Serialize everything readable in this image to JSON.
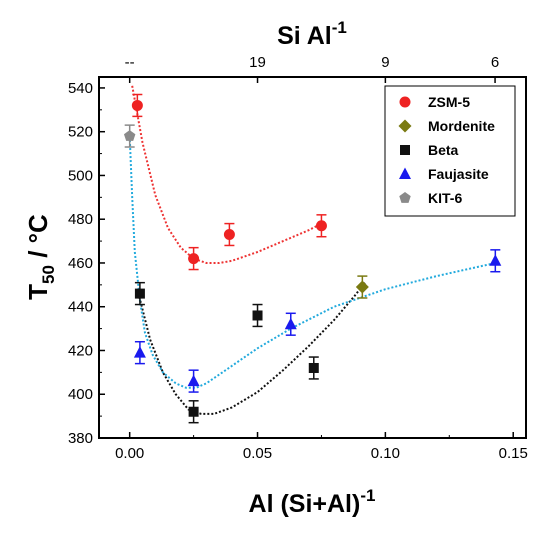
{
  "chart_data": {
    "type": "scatter",
    "title": "",
    "xlabel": "Al (Si+Al)",
    "xlabel_sup": "-1",
    "ylabel": "T",
    "ylabel_sub": "50",
    "ylabel_rest": " / °C",
    "top_axis_label": "Si Al",
    "top_axis_label_sup": "-1",
    "xlim": [
      -0.012,
      0.155
    ],
    "ylim": [
      380,
      545
    ],
    "x_ticks": [
      0.0,
      0.05,
      0.1,
      0.15
    ],
    "x_tick_labels": [
      "0.00",
      "0.05",
      "0.10",
      "0.15"
    ],
    "y_ticks": [
      380,
      400,
      420,
      440,
      460,
      480,
      500,
      520,
      540
    ],
    "y_tick_labels": [
      "380",
      "400",
      "420",
      "440",
      "460",
      "480",
      "500",
      "520",
      "540"
    ],
    "top_ticks": [
      {
        "x": 0.0,
        "label": "--"
      },
      {
        "x": 0.05,
        "label": "19"
      },
      {
        "x": 0.1,
        "label": "9"
      },
      {
        "x": 0.1429,
        "label": "6"
      }
    ],
    "legend_position": "top-right",
    "grid": false,
    "series": [
      {
        "name": "ZSM-5",
        "marker": "circle",
        "color": "#ee2222",
        "fit_color": "#ee3333",
        "points": [
          {
            "x": 0.003,
            "y": 532,
            "err": 5
          },
          {
            "x": 0.025,
            "y": 462,
            "err": 5
          },
          {
            "x": 0.039,
            "y": 473,
            "err": 5
          },
          {
            "x": 0.075,
            "y": 477,
            "err": 5
          }
        ],
        "fit": [
          [
            0.001,
            541
          ],
          [
            0.005,
            515
          ],
          [
            0.01,
            491
          ],
          [
            0.015,
            476
          ],
          [
            0.02,
            467
          ],
          [
            0.025,
            462
          ],
          [
            0.03,
            460
          ],
          [
            0.035,
            460
          ],
          [
            0.04,
            461
          ],
          [
            0.05,
            465
          ],
          [
            0.06,
            470
          ],
          [
            0.07,
            475
          ],
          [
            0.075,
            478
          ]
        ]
      },
      {
        "name": "Mordenite",
        "marker": "diamond",
        "color": "#7a7a12",
        "points": [
          {
            "x": 0.091,
            "y": 449,
            "err": 5
          }
        ]
      },
      {
        "name": "Beta",
        "marker": "square",
        "color": "#111111",
        "fit_color": "#111111",
        "points": [
          {
            "x": 0.004,
            "y": 446,
            "err": 5
          },
          {
            "x": 0.025,
            "y": 392,
            "err": 5
          },
          {
            "x": 0.05,
            "y": 436,
            "err": 5
          },
          {
            "x": 0.072,
            "y": 412,
            "err": 5
          }
        ],
        "fit": [
          [
            0.003,
            448
          ],
          [
            0.008,
            425
          ],
          [
            0.013,
            410
          ],
          [
            0.018,
            400
          ],
          [
            0.023,
            393
          ],
          [
            0.028,
            391
          ],
          [
            0.033,
            391
          ],
          [
            0.04,
            394
          ],
          [
            0.05,
            401
          ],
          [
            0.06,
            411
          ],
          [
            0.07,
            422
          ],
          [
            0.08,
            434
          ],
          [
            0.088,
            445
          ],
          [
            0.092,
            451
          ]
        ]
      },
      {
        "name": "Faujasite",
        "marker": "triangle",
        "color": "#1a1aee",
        "fit_color": "#22aadd",
        "points": [
          {
            "x": 0.004,
            "y": 419,
            "err": 5
          },
          {
            "x": 0.025,
            "y": 406,
            "err": 5
          },
          {
            "x": 0.063,
            "y": 432,
            "err": 5
          },
          {
            "x": 0.143,
            "y": 461,
            "err": 5
          }
        ],
        "fit": [
          [
            0.0,
            518
          ],
          [
            0.001,
            490
          ],
          [
            0.002,
            465
          ],
          [
            0.004,
            443
          ],
          [
            0.006,
            428
          ],
          [
            0.009,
            418
          ],
          [
            0.013,
            410
          ],
          [
            0.018,
            405
          ],
          [
            0.022,
            403
          ],
          [
            0.026,
            403
          ],
          [
            0.03,
            405
          ],
          [
            0.04,
            413
          ],
          [
            0.05,
            421
          ],
          [
            0.063,
            430
          ],
          [
            0.08,
            440
          ],
          [
            0.1,
            448
          ],
          [
            0.12,
            454
          ],
          [
            0.143,
            460
          ]
        ]
      },
      {
        "name": "KIT-6",
        "marker": "pentagon",
        "color": "#8a8a8a",
        "points": [
          {
            "x": 0.0,
            "y": 518,
            "err": 5
          }
        ]
      }
    ]
  }
}
